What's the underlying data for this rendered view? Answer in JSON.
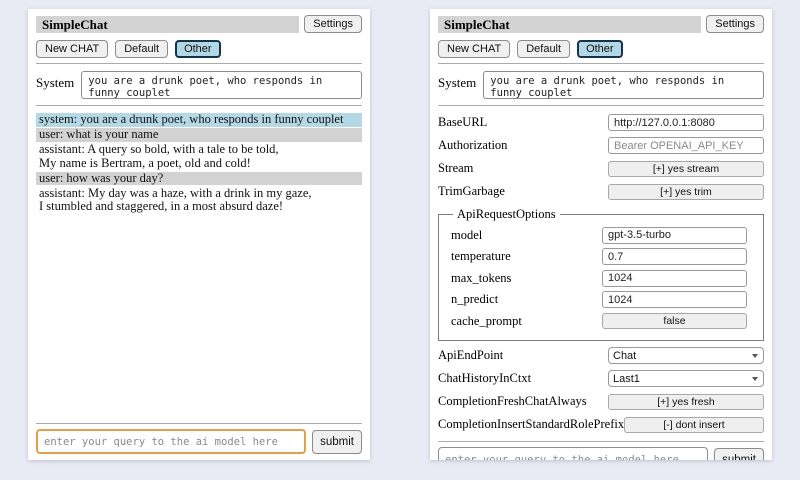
{
  "header": {
    "title": "SimpleChat",
    "settings_button": "Settings"
  },
  "session_buttons": {
    "new_chat": "New CHAT",
    "default": "Default",
    "other": "Other"
  },
  "system_prompt": {
    "label": "System",
    "value": "you are a drunk poet, who responds in funny couplet"
  },
  "chat_panel": {
    "messages": [
      {
        "role": "system",
        "text": "system: you are a drunk poet, who responds in funny couplet"
      },
      {
        "role": "user",
        "text": "user: what is your name"
      },
      {
        "role": "assistant",
        "text": "assistant: A query so bold, with a tale to be told,\nMy name is Bertram, a poet, old and cold!"
      },
      {
        "role": "user",
        "text": "user: how was your day?"
      },
      {
        "role": "assistant",
        "text": "assistant: My day was a haze, with a drink in my gaze,\nI stumbled and staggered, in a most absurd daze!"
      }
    ]
  },
  "settings_panel": {
    "base_url": {
      "label": "BaseURL",
      "value": "http://127.0.0.1:8080"
    },
    "authorization": {
      "label": "Authorization",
      "placeholder": "Bearer OPENAI_API_KEY"
    },
    "stream": {
      "label": "Stream",
      "button": "[+] yes stream"
    },
    "trim_garbage": {
      "label": "TrimGarbage",
      "button": "[+] yes trim"
    },
    "api_request_options": {
      "legend": "ApiRequestOptions",
      "model": {
        "label": "model",
        "value": "gpt-3.5-turbo"
      },
      "temperature": {
        "label": "temperature",
        "value": "0.7"
      },
      "max_tokens": {
        "label": "max_tokens",
        "value": "1024"
      },
      "n_predict": {
        "label": "n_predict",
        "value": "1024"
      },
      "cache_prompt": {
        "label": "cache_prompt",
        "button": "false"
      }
    },
    "api_endpoint": {
      "label": "ApiEndPoint",
      "selected": "Chat"
    },
    "chat_history_in_ctxt": {
      "label": "ChatHistoryInCtxt",
      "selected": "Last1"
    },
    "completion_fresh_chat_always": {
      "label": "CompletionFreshChatAlways",
      "button": "[+] yes fresh"
    },
    "completion_insert_standard_role_prefix": {
      "label": "CompletionInsertStandardRolePrefix",
      "button": "[-] dont insert"
    }
  },
  "query": {
    "placeholder": "enter your query to the ai model here",
    "submit": "submit"
  },
  "colors": {
    "page_bg": "#e9ebf4",
    "titlebar_bg": "#d3d3d3",
    "active_session_bg": "#b2d7e5",
    "active_session_border": "#16334d",
    "system_message_bg": "#b5d8e7",
    "user_message_bg": "#d2d2d2",
    "focused_input_border": "#dfa049"
  }
}
